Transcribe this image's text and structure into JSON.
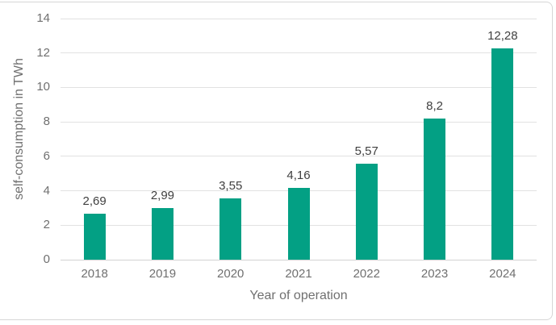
{
  "panel": {
    "background": "#ffffff",
    "border_color": "#d6d6d6"
  },
  "chart_data": {
    "type": "bar",
    "title": "",
    "xlabel": "Year of operation",
    "ylabel": "self-consumption in TWh",
    "categories": [
      "2018",
      "2019",
      "2020",
      "2021",
      "2022",
      "2023",
      "2024"
    ],
    "values": [
      2.69,
      2.99,
      3.55,
      4.16,
      5.57,
      8.2,
      12.28
    ],
    "value_labels": [
      "2,69",
      "2,99",
      "3,55",
      "4,16",
      "5,57",
      "8,2",
      "12,28"
    ],
    "ylim": [
      0,
      14
    ],
    "ytick_step": 2,
    "ytick_labels": [
      "0",
      "2",
      "4",
      "6",
      "8",
      "10",
      "12",
      "14"
    ],
    "grid": true,
    "legend": "none",
    "decimal_separator": ",",
    "bar_color": "#03a084",
    "value_label_color": "#404040",
    "axis_text_color": "#707070",
    "gridline_color": "#e2e2e2",
    "zero_line_color": "#d2d2d2"
  }
}
